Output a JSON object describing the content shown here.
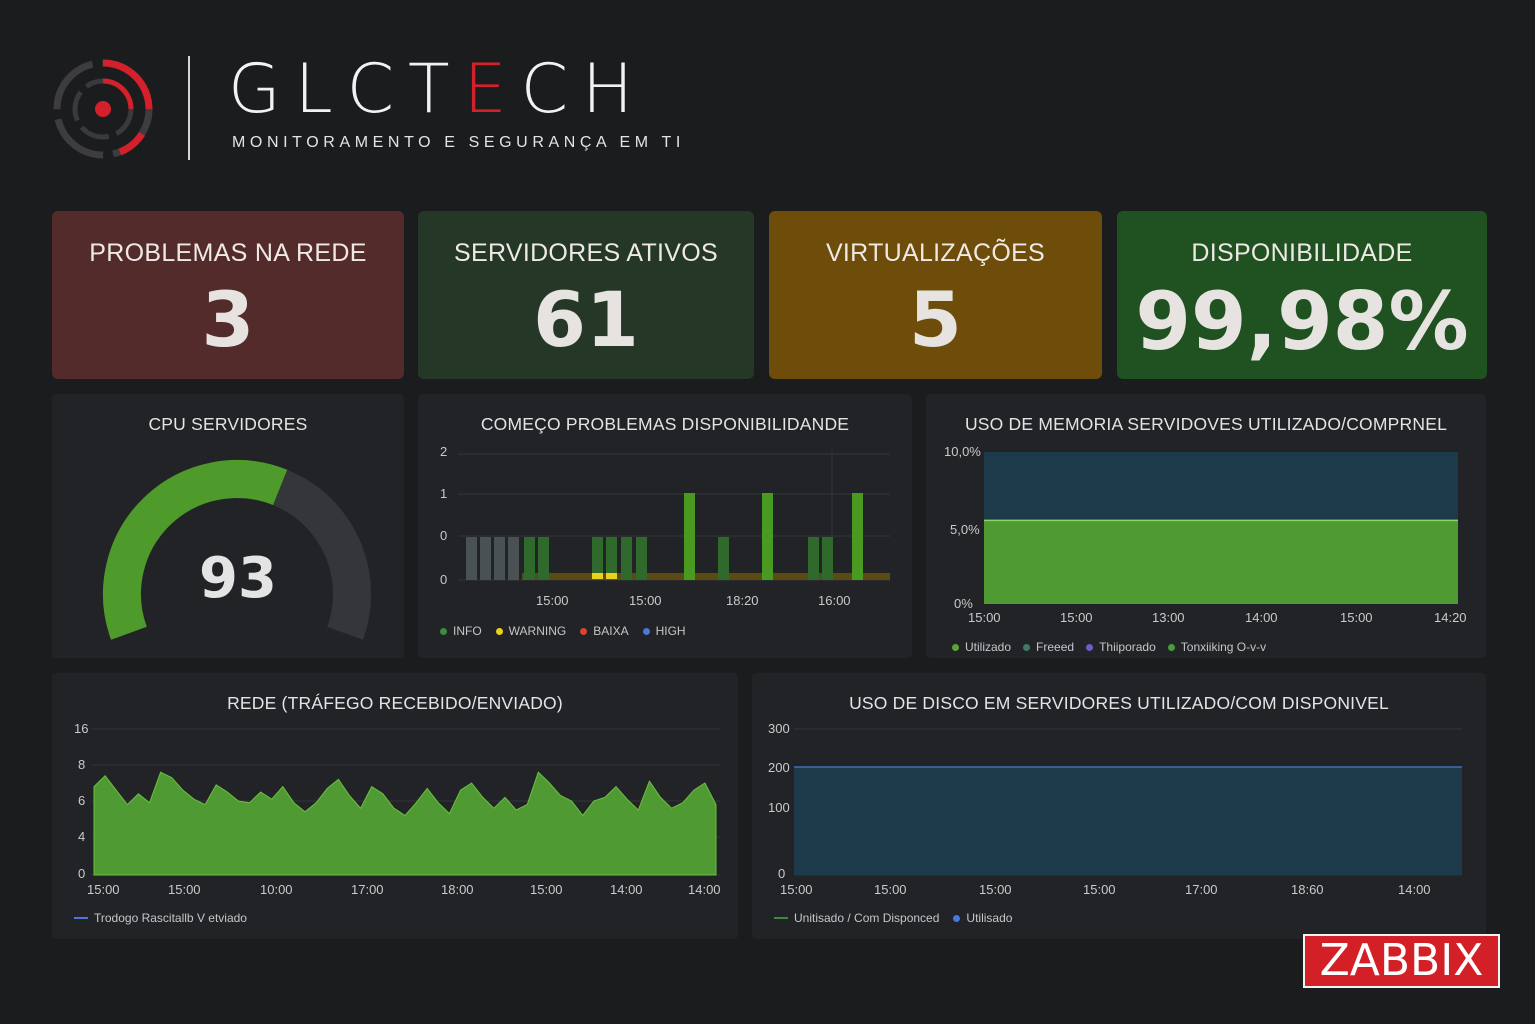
{
  "brand": {
    "title_main": "GLCT",
    "title_accent": "E",
    "title_end": "CH",
    "subtitle": "MONITORAMENTO E SEGURANÇA EM TI",
    "logo_icon": "target-icon",
    "accent_color": "#d4202a"
  },
  "cards": {
    "problems": {
      "title": "PROBLEMAS NA REDE",
      "value": "3",
      "color": "#532b2b"
    },
    "servers": {
      "title": "SERVIDORES ATIVOS",
      "value": "61",
      "color": "#253828"
    },
    "virt": {
      "title": "VIRTUALIZAÇÕES",
      "value": "5",
      "color": "#6e4d0a"
    },
    "avail": {
      "title": "DISPONIBILIDADE",
      "value": "99,98%",
      "color": "#1f5220"
    }
  },
  "cpu": {
    "title": "CPU SERVIDORES",
    "value": "93",
    "fraction": 0.6
  },
  "problems_chart": {
    "title": "COMEÇO PROBLEMAS DISPONIBILIDANDE",
    "legend": [
      {
        "label": "INFO",
        "color": "#3f8a3f"
      },
      {
        "label": "WARNING",
        "color": "#e8d21c"
      },
      {
        "label": "BAIXA",
        "color": "#d9432f"
      },
      {
        "label": "HIGH",
        "color": "#4a78d8"
      }
    ]
  },
  "memory_chart": {
    "title": "USO DE MEMORIA SERVIDOVES UTILIZADO/COMPRNEL",
    "legend": [
      {
        "label": "Utilizado",
        "color": "#5aa33a"
      },
      {
        "label": "Freeed",
        "color": "#3f7a66"
      },
      {
        "label": "Thiiporado",
        "color": "#6a5fc8"
      },
      {
        "label": "Tonxiiking O-v-v",
        "color": "#4d9a3c"
      }
    ]
  },
  "network_chart": {
    "title": "REDE (TRÁFEGO RECEBIDO/ENVIADO)",
    "legend": [
      {
        "label": "Trodogo Rascitallb V etviado",
        "color": "#4a78d8"
      }
    ]
  },
  "disk_chart": {
    "title": "USO DE DISCO EM SERVIDORES UTILIZADO/COM DISPONIVEL",
    "legend": [
      {
        "label": "Unitisado  /  Com Disponced",
        "color": "#3f8a3f"
      },
      {
        "label": "Utilisado",
        "color": "#4a78d8"
      }
    ]
  },
  "zabbix": {
    "label": "ZABBIX",
    "color": "#d31f26"
  },
  "chart_data": [
    {
      "type": "bar",
      "title": "COMEÇO PROBLEMAS DISPONIBILIDANDE",
      "y_ticks": [
        "2",
        "1",
        "0",
        "0"
      ],
      "x_ticks": [
        "15:00",
        "15:00",
        "18:20",
        "16:00"
      ],
      "series": [
        {
          "name": "INFO",
          "values": [
            1,
            1,
            1,
            1,
            1,
            1,
            1,
            1,
            1,
            1,
            2,
            1,
            2,
            1,
            1,
            2
          ]
        },
        {
          "name": "WARNING",
          "values": [
            0,
            0,
            0,
            0,
            0,
            0,
            0.15,
            0.15,
            0,
            0,
            0,
            0,
            0,
            0,
            0,
            0
          ]
        }
      ]
    },
    {
      "type": "area",
      "title": "USO DE MEMORIA SERVIDOVES UTILIZADO/COMPRNEL",
      "y_ticks": [
        "10,0%",
        "5,0%",
        "0%"
      ],
      "x_ticks": [
        "15:00",
        "15:00",
        "13:00",
        "14:00",
        "15:00",
        "14:20"
      ],
      "ylim": [
        0,
        10
      ],
      "series": [
        {
          "name": "Utilizado",
          "values": [
            5.5,
            5.5
          ]
        },
        {
          "name": "Freeed",
          "values": [
            10,
            10
          ]
        }
      ]
    },
    {
      "type": "area",
      "title": "REDE (TRÁFEGO RECEBIDO/ENVIADO)",
      "y_ticks": [
        "16",
        "8",
        "6",
        "4",
        "0"
      ],
      "x_ticks": [
        "15:00",
        "15:00",
        "10:00",
        "17:00",
        "18:00",
        "15:00",
        "14:00",
        "14:00"
      ],
      "series": [
        {
          "name": "Trodogo Rascitallb V etviado",
          "values": [
            6.8,
            7.4,
            6.6,
            5.8,
            6.4,
            5.9,
            7.6,
            7.3,
            6.6,
            6.1,
            5.8,
            6.9,
            6.5,
            6.0,
            5.9,
            6.5,
            6.1,
            6.8,
            5.9,
            5.4,
            5.9,
            6.7,
            7.2,
            6.3,
            5.6,
            6.8,
            6.4,
            5.6,
            5.2,
            5.9,
            6.7,
            5.9,
            5.3,
            6.6,
            7.0,
            6.2,
            5.6,
            6.2,
            5.5,
            5.8,
            7.6,
            7.0,
            6.3,
            6.0,
            5.2,
            6.0,
            6.2,
            6.8,
            6.1,
            5.5,
            7.1,
            6.2,
            5.6,
            5.9,
            6.6,
            7.0,
            5.8
          ]
        }
      ]
    },
    {
      "type": "area",
      "title": "USO DE DISCO EM SERVIDORES UTILIZADO/COM DISPONIVEL",
      "y_ticks": [
        "300",
        "200",
        "100",
        "0"
      ],
      "x_ticks": [
        "15:00",
        "15:00",
        "15:00",
        "15:00",
        "17:00",
        "18:60",
        "14:00"
      ],
      "series": [
        {
          "name": "Utilisado",
          "values": [
            200,
            200
          ]
        }
      ]
    }
  ]
}
